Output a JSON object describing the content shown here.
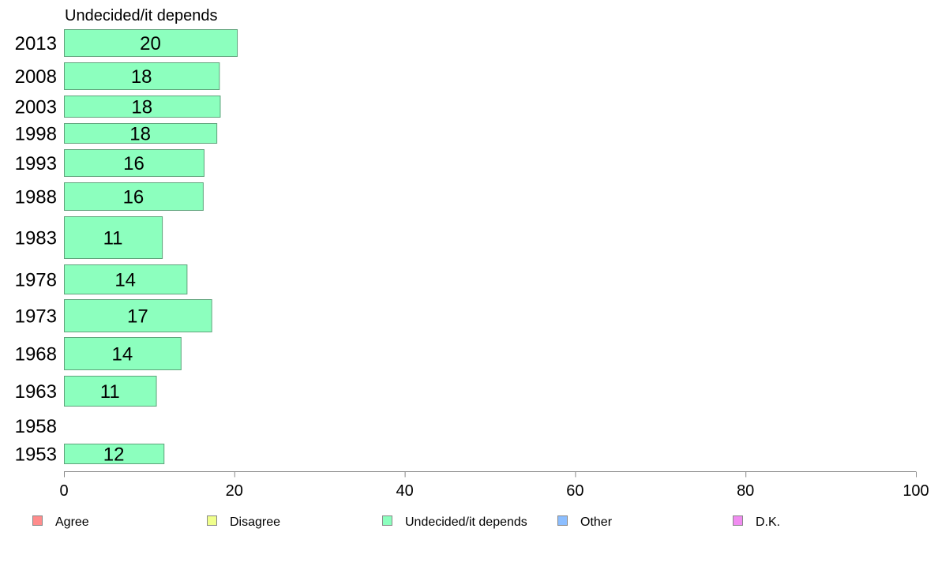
{
  "chart_data": {
    "type": "bar",
    "orientation": "horizontal",
    "panel_title": "Undecided/it depends",
    "categories": [
      "2013",
      "2008",
      "2003",
      "1998",
      "1993",
      "1988",
      "1983",
      "1978",
      "1973",
      "1968",
      "1963",
      "1958",
      "1953"
    ],
    "series": [
      {
        "name": "Undecided/it depends",
        "color": "#8cffbe",
        "values": [
          20.3,
          18.2,
          18.3,
          17.9,
          16.4,
          16.3,
          11.5,
          14.4,
          17.3,
          13.7,
          10.8,
          null,
          11.7
        ],
        "labels": [
          "20",
          "18",
          "18",
          "18",
          "16",
          "16",
          "11",
          "14",
          "17",
          "14",
          "11",
          "",
          "12"
        ]
      }
    ],
    "xlim": [
      0,
      100
    ],
    "x_ticks": [
      0,
      20,
      40,
      60,
      80,
      100
    ],
    "legend": {
      "placement": "bottom",
      "items": [
        {
          "label": "Agree",
          "color": "#ff8c8c"
        },
        {
          "label": "Disagree",
          "color": "#f0ff8c"
        },
        {
          "label": "Undecided/it depends",
          "color": "#8cffbe"
        },
        {
          "label": "Other",
          "color": "#8cbeff"
        },
        {
          "label": "D.K.",
          "color": "#f08cf0"
        }
      ]
    }
  }
}
